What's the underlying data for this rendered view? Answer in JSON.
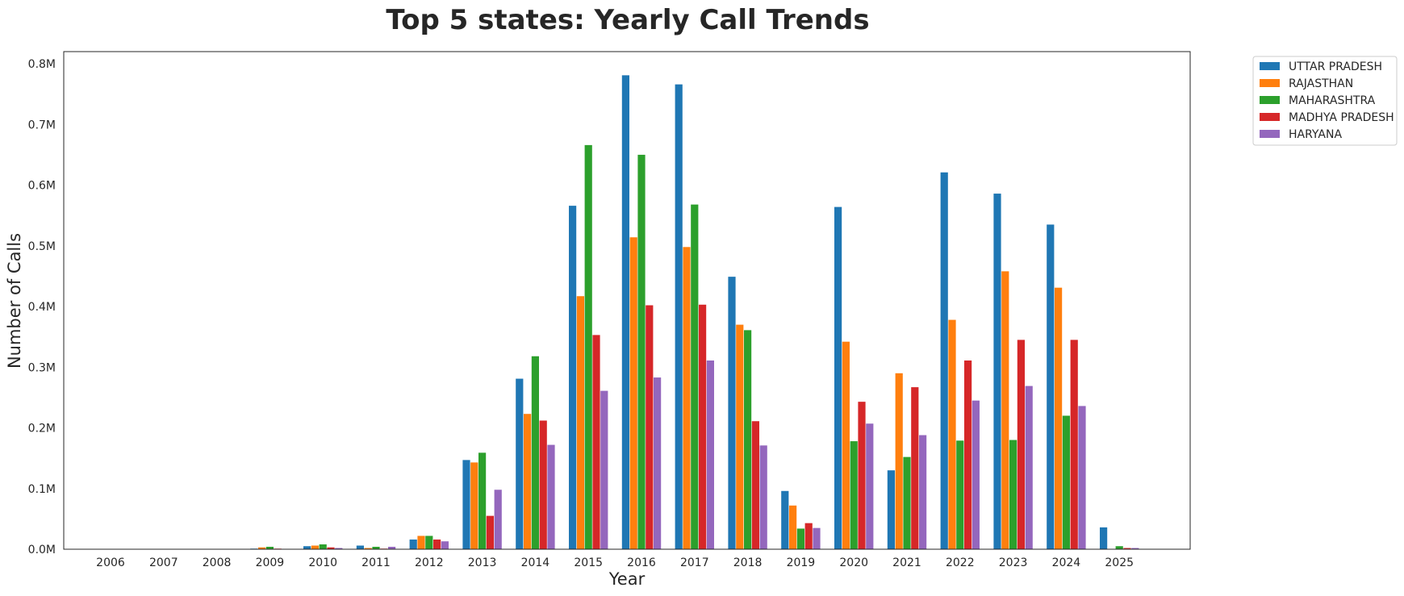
{
  "chart_data": {
    "type": "bar",
    "title": "Top 5 states: Yearly Call Trends",
    "xlabel": "Year",
    "ylabel": "Number of Calls",
    "ylim": [
      0,
      820000
    ],
    "yticks": [
      0,
      100000,
      200000,
      300000,
      400000,
      500000,
      600000,
      700000,
      800000
    ],
    "ytick_labels": [
      "0.0M",
      "0.1M",
      "0.2M",
      "0.3M",
      "0.4M",
      "0.5M",
      "0.6M",
      "0.7M",
      "0.8M"
    ],
    "grid": false,
    "legend_position": "outside-top-right",
    "categories": [
      "2006",
      "2007",
      "2008",
      "2009",
      "2010",
      "2011",
      "2012",
      "2013",
      "2014",
      "2015",
      "2016",
      "2017",
      "2018",
      "2019",
      "2020",
      "2021",
      "2022",
      "2023",
      "2024",
      "2025"
    ],
    "series": [
      {
        "name": "UTTAR PRADESH",
        "color": "#1f77b4",
        "values": [
          0,
          0,
          0,
          1000,
          5000,
          6000,
          16000,
          147000,
          281000,
          566000,
          781000,
          766000,
          449000,
          96000,
          564000,
          130000,
          621000,
          586000,
          535000,
          36000
        ]
      },
      {
        "name": "RAJASTHAN",
        "color": "#ff7f0e",
        "values": [
          0,
          0,
          0,
          3000,
          6000,
          2000,
          22000,
          143000,
          223000,
          417000,
          514000,
          498000,
          370000,
          72000,
          342000,
          290000,
          378000,
          458000,
          431000,
          0
        ]
      },
      {
        "name": "MAHARASHTRA",
        "color": "#2ca02c",
        "values": [
          0,
          0,
          0,
          4000,
          8000,
          4000,
          22000,
          159000,
          318000,
          666000,
          650000,
          568000,
          361000,
          34000,
          178000,
          152000,
          179000,
          180000,
          220000,
          5000
        ]
      },
      {
        "name": "MADHYA PRADESH",
        "color": "#d62728",
        "values": [
          0,
          0,
          0,
          1000,
          3000,
          1000,
          16000,
          55000,
          212000,
          353000,
          402000,
          403000,
          211000,
          43000,
          243000,
          267000,
          311000,
          345000,
          345000,
          2000
        ]
      },
      {
        "name": "HARYANA",
        "color": "#9467bd",
        "values": [
          0,
          0,
          0,
          0,
          2000,
          4000,
          13000,
          98000,
          172000,
          261000,
          283000,
          311000,
          171000,
          35000,
          207000,
          188000,
          245000,
          269000,
          236000,
          2000
        ]
      }
    ]
  }
}
